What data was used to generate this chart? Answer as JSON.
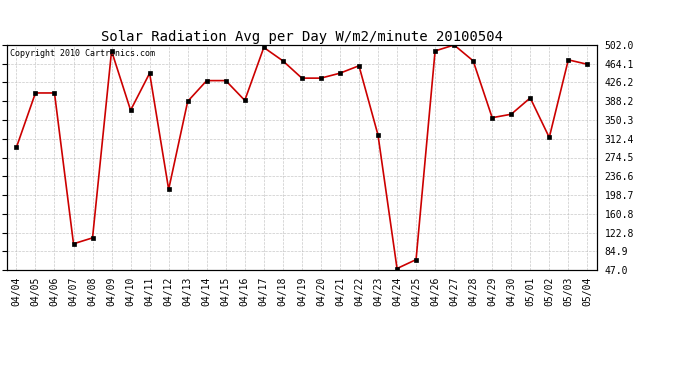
{
  "title": "Solar Radiation Avg per Day W/m2/minute 20100504",
  "copyright": "Copyright 2010 Cartronics.com",
  "dates": [
    "04/04",
    "04/05",
    "04/06",
    "04/07",
    "04/08",
    "04/09",
    "04/10",
    "04/11",
    "04/12",
    "04/13",
    "04/14",
    "04/15",
    "04/16",
    "04/17",
    "04/18",
    "04/19",
    "04/20",
    "04/21",
    "04/22",
    "04/23",
    "04/24",
    "04/25",
    "04/26",
    "04/27",
    "04/28",
    "04/29",
    "04/30",
    "05/01",
    "05/02",
    "05/03",
    "05/04"
  ],
  "values": [
    295,
    405,
    405,
    100,
    112,
    490,
    370,
    445,
    210,
    388,
    430,
    430,
    390,
    497,
    470,
    435,
    435,
    445,
    460,
    320,
    50,
    68,
    490,
    502,
    470,
    355,
    362,
    395,
    315,
    472,
    463
  ],
  "y_ticks": [
    47.0,
    84.9,
    122.8,
    160.8,
    198.7,
    236.6,
    274.5,
    312.4,
    350.3,
    388.2,
    426.2,
    464.1,
    502.0
  ],
  "ylim": [
    47.0,
    502.0
  ],
  "line_color": "#cc0000",
  "marker_color": "#000000",
  "bg_color": "#ffffff",
  "grid_color": "#bbbbbb",
  "title_fontsize": 10,
  "copyright_fontsize": 6,
  "tick_fontsize": 7,
  "ytick_fontsize": 7
}
